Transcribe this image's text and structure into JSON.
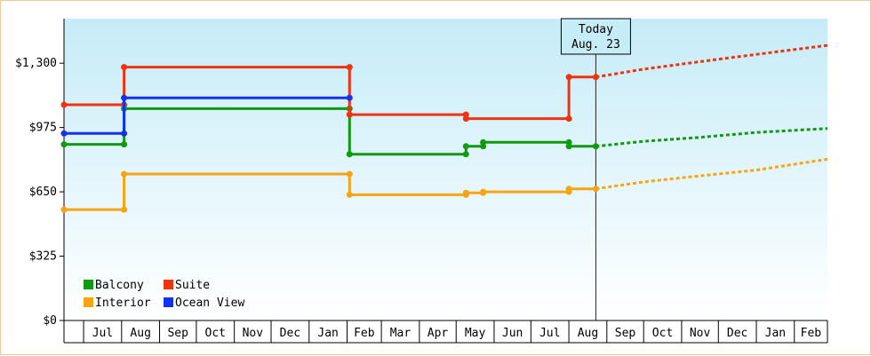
{
  "chart_data": {
    "type": "line",
    "title": "",
    "xlabel": "",
    "ylabel": "",
    "y_ticks": [
      "$0",
      "$325",
      "$650",
      "$975",
      "$1,300"
    ],
    "y_tick_values": [
      0,
      325,
      650,
      975,
      1300
    ],
    "ylim": [
      0,
      1525
    ],
    "x_tick_labels": [
      "Jul",
      "Aug",
      "Sep",
      "Oct",
      "Nov",
      "Dec",
      "Jan",
      "Feb",
      "Mar",
      "Apr",
      "May",
      "Jun",
      "Jul",
      "Aug",
      "Sep",
      "Oct",
      "Nov",
      "Dec",
      "Jan",
      "Feb"
    ],
    "xlim": [
      "2022-06-15",
      "2024-02-28"
    ],
    "grid": false,
    "legend_position": "bottom-left",
    "today_marker": {
      "date": "2023-08-23",
      "line1": "Today",
      "line2": "Aug. 23"
    },
    "series": [
      {
        "name": "Balcony",
        "color": "#119911",
        "points": [
          [
            "2022-06-15",
            890
          ],
          [
            "2022-08-03",
            890
          ],
          [
            "2022-08-03",
            1070
          ],
          [
            "2023-02-03",
            1070
          ],
          [
            "2023-02-03",
            840
          ],
          [
            "2023-05-09",
            840
          ],
          [
            "2023-05-09",
            880
          ],
          [
            "2023-05-23",
            880
          ],
          [
            "2023-05-23",
            900
          ],
          [
            "2023-08-01",
            900
          ],
          [
            "2023-08-01",
            880
          ],
          [
            "2023-08-23",
            880
          ]
        ],
        "markers": [
          [
            "2022-06-15",
            890
          ],
          [
            "2022-08-03",
            890
          ],
          [
            "2022-08-03",
            1070
          ],
          [
            "2023-02-03",
            1070
          ],
          [
            "2023-02-03",
            840
          ],
          [
            "2023-05-09",
            840
          ],
          [
            "2023-05-09",
            880
          ],
          [
            "2023-05-23",
            880
          ],
          [
            "2023-05-23",
            900
          ],
          [
            "2023-08-01",
            900
          ],
          [
            "2023-08-01",
            880
          ],
          [
            "2023-08-23",
            880
          ]
        ],
        "projection": [
          [
            "2023-08-23",
            880
          ],
          [
            "2023-10-01",
            905
          ],
          [
            "2023-11-15",
            925
          ],
          [
            "2024-01-01",
            950
          ],
          [
            "2024-02-28",
            970
          ]
        ]
      },
      {
        "name": "Suite",
        "color": "#ee3311",
        "points": [
          [
            "2022-06-15",
            1090
          ],
          [
            "2022-08-03",
            1090
          ],
          [
            "2022-08-03",
            1280
          ],
          [
            "2023-02-03",
            1280
          ],
          [
            "2023-02-03",
            1040
          ],
          [
            "2023-05-09",
            1040
          ],
          [
            "2023-05-09",
            1020
          ],
          [
            "2023-08-01",
            1020
          ],
          [
            "2023-08-01",
            1230
          ],
          [
            "2023-08-23",
            1230
          ]
        ],
        "markers": [
          [
            "2022-06-15",
            1090
          ],
          [
            "2022-08-03",
            1090
          ],
          [
            "2022-08-03",
            1280
          ],
          [
            "2023-02-03",
            1280
          ],
          [
            "2023-02-03",
            1040
          ],
          [
            "2023-05-09",
            1040
          ],
          [
            "2023-05-09",
            1020
          ],
          [
            "2023-08-01",
            1020
          ],
          [
            "2023-08-01",
            1230
          ],
          [
            "2023-08-23",
            1230
          ]
        ],
        "projection": [
          [
            "2023-08-23",
            1230
          ],
          [
            "2023-10-01",
            1270
          ],
          [
            "2023-12-01",
            1320
          ],
          [
            "2024-02-28",
            1390
          ]
        ]
      },
      {
        "name": "Interior",
        "color": "#f5a511",
        "points": [
          [
            "2022-06-15",
            560
          ],
          [
            "2022-08-03",
            560
          ],
          [
            "2022-08-03",
            740
          ],
          [
            "2023-02-03",
            740
          ],
          [
            "2023-02-03",
            635
          ],
          [
            "2023-05-09",
            635
          ],
          [
            "2023-05-09",
            645
          ],
          [
            "2023-05-23",
            645
          ],
          [
            "2023-05-23",
            650
          ],
          [
            "2023-08-01",
            650
          ],
          [
            "2023-08-01",
            665
          ],
          [
            "2023-08-23",
            665
          ]
        ],
        "markers": [
          [
            "2022-06-15",
            560
          ],
          [
            "2022-08-03",
            560
          ],
          [
            "2022-08-03",
            740
          ],
          [
            "2023-02-03",
            740
          ],
          [
            "2023-02-03",
            635
          ],
          [
            "2023-05-09",
            635
          ],
          [
            "2023-05-09",
            645
          ],
          [
            "2023-05-23",
            645
          ],
          [
            "2023-05-23",
            650
          ],
          [
            "2023-08-01",
            650
          ],
          [
            "2023-08-01",
            665
          ],
          [
            "2023-08-23",
            665
          ]
        ],
        "projection": [
          [
            "2023-08-23",
            665
          ],
          [
            "2023-10-01",
            700
          ],
          [
            "2023-11-15",
            730
          ],
          [
            "2024-01-01",
            760
          ],
          [
            "2024-02-28",
            815
          ]
        ]
      },
      {
        "name": "Ocean View",
        "color": "#1133ee",
        "points": [
          [
            "2022-06-15",
            945
          ],
          [
            "2022-08-03",
            945
          ],
          [
            "2022-08-03",
            1125
          ],
          [
            "2023-02-03",
            1125
          ]
        ],
        "markers": [
          [
            "2022-06-15",
            945
          ],
          [
            "2022-08-03",
            945
          ],
          [
            "2022-08-03",
            1125
          ],
          [
            "2023-02-03",
            1125
          ]
        ],
        "projection": []
      }
    ]
  }
}
